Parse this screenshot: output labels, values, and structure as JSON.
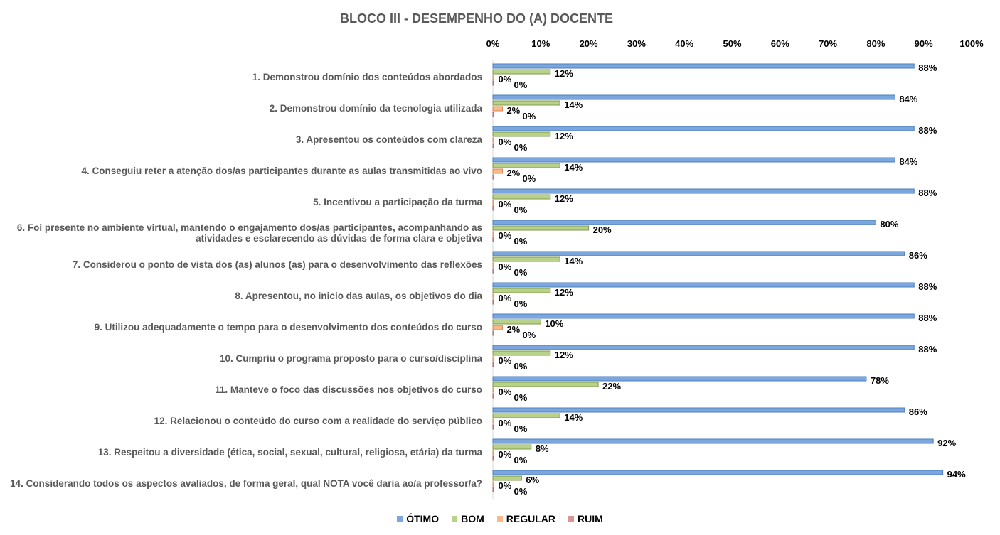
{
  "chart_data": {
    "type": "bar",
    "orientation": "horizontal",
    "title": "BLOCO III - DESEMPENHO DO (A) DOCENTE",
    "xlim": [
      0,
      100
    ],
    "x_ticks": [
      "0%",
      "10%",
      "20%",
      "30%",
      "40%",
      "50%",
      "60%",
      "70%",
      "80%",
      "90%",
      "100%"
    ],
    "x_tick_position": "top",
    "legend_position": "bottom",
    "categories": [
      "1. Demonstrou domínio dos conteúdos abordados",
      "2. Demonstrou domínio da tecnologia utilizada",
      "3. Apresentou os conteúdos com clareza",
      "4. Conseguiu reter a atenção dos/as participantes durante as aulas transmitidas ao vivo",
      "5. Incentivou a participação da turma",
      "6. Foi presente no ambiente virtual, mantendo o engajamento dos/as participantes, acompanhando as atividades e esclarecendo as dúvidas de forma clara e objetiva",
      "7. Considerou o ponto de vista dos (as) alunos (as) para o desenvolvimento das reflexões",
      "8. Apresentou, no inicio das aulas, os objetivos do dia",
      "9. Utilizou adequadamente o tempo para o desenvolvimento dos conteúdos do curso",
      "10. Cumpriu o programa proposto para o curso/disciplina",
      "11. Manteve o foco das discussões nos objetivos do curso",
      "12. Relacionou o conteúdo do curso com a realidade do serviço público",
      "13. Respeitou a diversidade (ética, social, sexual, cultural, religiosa, etária) da turma",
      "14. Considerando todos os aspectos avaliados, de forma geral, qual NOTA você daria ao/a professor/a?"
    ],
    "series": [
      {
        "name": "ÓTIMO",
        "color": "#7BA7DE",
        "values": [
          88,
          84,
          88,
          84,
          88,
          80,
          86,
          88,
          88,
          88,
          78,
          86,
          92,
          94
        ]
      },
      {
        "name": "BOM",
        "color": "#B9D28A",
        "values": [
          12,
          14,
          12,
          14,
          12,
          20,
          14,
          12,
          10,
          12,
          22,
          14,
          8,
          6
        ]
      },
      {
        "name": "REGULAR",
        "color": "#F9B98A",
        "values": [
          0,
          2,
          0,
          2,
          0,
          0,
          0,
          0,
          2,
          0,
          0,
          0,
          0,
          0
        ]
      },
      {
        "name": "RUIM",
        "color": "#D99594",
        "values": [
          0,
          0,
          0,
          0,
          0,
          0,
          0,
          0,
          0,
          0,
          0,
          0,
          0,
          0
        ]
      }
    ]
  }
}
